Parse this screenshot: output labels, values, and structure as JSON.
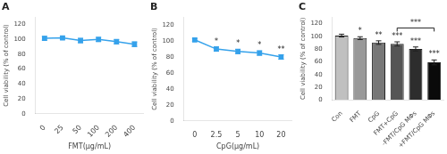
{
  "chart_data": [
    {
      "type": "line",
      "title": "A",
      "categories": [
        "0",
        "25",
        "50",
        "100",
        "200",
        "400"
      ],
      "values": [
        101.5,
        102.0,
        98.5,
        100.0,
        97.0,
        93.5
      ],
      "yerr": [
        2.5,
        1.8,
        3.0,
        2.8,
        3.0,
        3.2
      ],
      "xlabel": "FMT(µg/mL)",
      "ylabel": "Cell viability (% of control)",
      "ylim": [
        0,
        130
      ],
      "yticks": [
        0,
        20,
        40,
        60,
        80,
        100,
        120
      ],
      "marker": "square",
      "grid": false
    },
    {
      "type": "line",
      "title": "B",
      "categories": [
        "0",
        "2.5",
        "5",
        "10",
        "20"
      ],
      "values": [
        101.5,
        90.0,
        87.0,
        85.0,
        80.0
      ],
      "yerr": [
        1.8,
        2.8,
        2.8,
        2.8,
        2.8
      ],
      "annotations": [
        null,
        "*",
        "*",
        "*",
        "**"
      ],
      "xlabel": "CpG(µg/mL)",
      "ylabel": "Cell viability (% of control)",
      "ylim": [
        0,
        130
      ],
      "yticks": [
        0,
        20,
        40,
        60,
        80,
        100,
        120
      ],
      "marker": "square",
      "grid": false
    },
    {
      "type": "bar",
      "title": "C",
      "categories": [
        "Con",
        "FMT",
        "CpG",
        "FMT+CpG",
        "-FMT/CpG MΦs",
        "+FMT/CpG MΦs"
      ],
      "values": [
        101.0,
        97.0,
        90.0,
        88.0,
        80.0,
        59.0
      ],
      "yerr": [
        2.2,
        2.2,
        2.8,
        3.2,
        3.2,
        3.8
      ],
      "colors": [
        "#c0c0c0",
        "#999999",
        "#777777",
        "#555555",
        "#2d2d2d",
        "#0a0a0a"
      ],
      "annotations": [
        null,
        "*",
        "**",
        "***",
        "***",
        "***"
      ],
      "bracket": {
        "from": "FMT+CpG",
        "to": "+FMT/CpG MΦs",
        "y": 113,
        "label": "***"
      },
      "ylabel": "Cell viability (% of control)",
      "ylim": [
        0,
        130
      ],
      "yticks": [
        0,
        20,
        40,
        60,
        80,
        100,
        120
      ],
      "grid": false
    }
  ]
}
